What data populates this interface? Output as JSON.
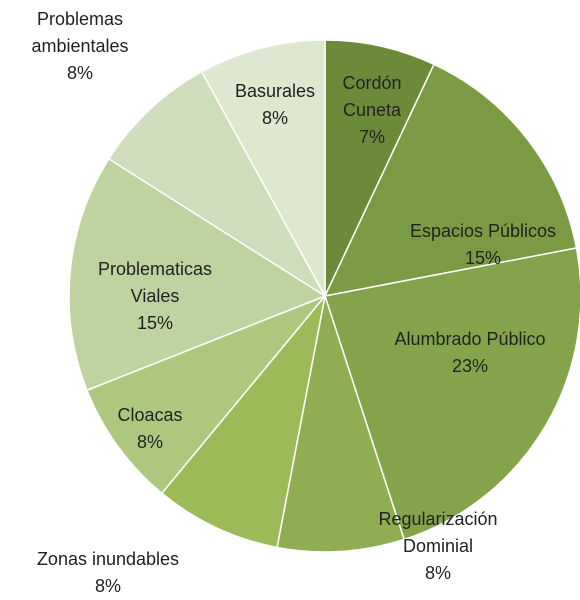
{
  "chart_data": {
    "type": "pie",
    "categories": [
      "Cordón Cuneta",
      "Espacios Públicos",
      "Alumbrado Público",
      "Regularización Dominial",
      "Zonas inundables",
      "Cloacas",
      "Problematicas Viales",
      "Problemas ambientales",
      "Basurales"
    ],
    "values": [
      7,
      15,
      23,
      8,
      8,
      8,
      15,
      8,
      8
    ],
    "value_labels": [
      "7%",
      "15%",
      "23%",
      "8%",
      "8%",
      "8%",
      "15%",
      "8%",
      "8%"
    ],
    "colors": [
      "#6b8b3b",
      "#7a9a44",
      "#84a44b",
      "#8fae51",
      "#9bbb59",
      "#adc77f",
      "#bfd3a0",
      "#d0ddbc",
      "#dee7d0"
    ]
  }
}
